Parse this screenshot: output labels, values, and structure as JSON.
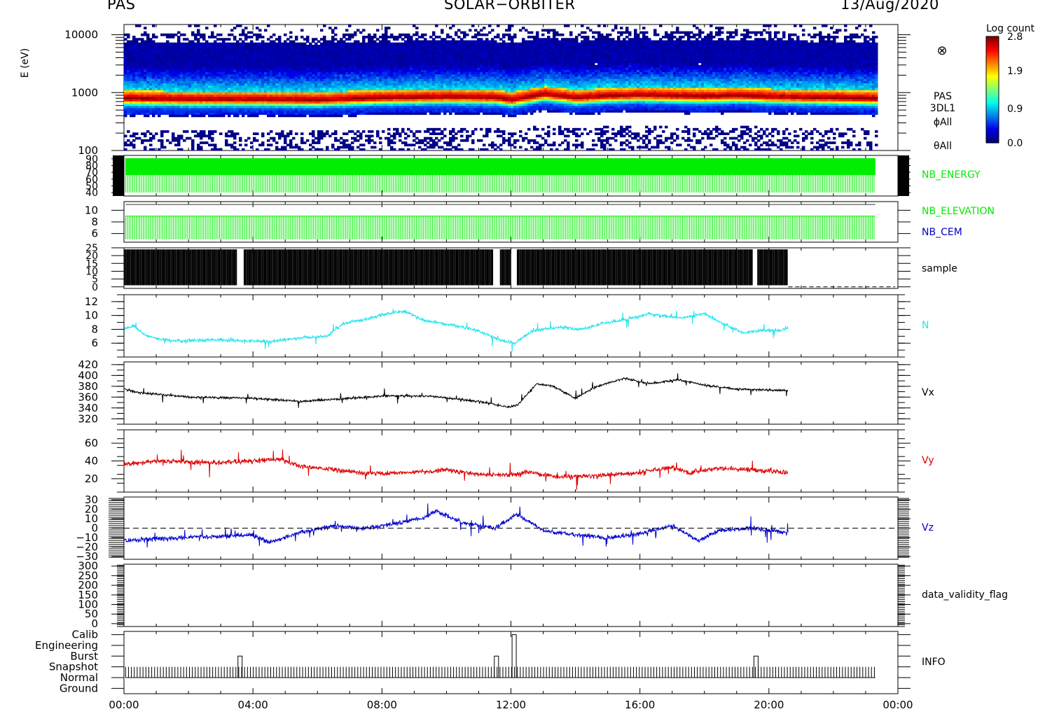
{
  "header": {
    "left": "PAS",
    "center": "SOLAR−ORBITER",
    "right": "13/Aug/2020"
  },
  "colors": {
    "nb_energy": "#00ee00",
    "nb_elevation": "#00ee00",
    "nb_cem": "#0000cc",
    "sample": "#000000",
    "N": "#22e4ee",
    "Vx": "#000000",
    "Vy": "#dd0000",
    "Vz": "#0000cc",
    "data_validity_flag": "#000000",
    "info": "#000000"
  },
  "chart_data": [
    {
      "type": "heatmap",
      "panel": "spectrogram",
      "ylabel": "E (eV)",
      "yscale": "log",
      "ylim": [
        100,
        15000
      ],
      "yticks": [
        "10000",
        "1000",
        "100"
      ],
      "ytick_values": [
        10000,
        1000,
        100
      ],
      "right_labels": [
        "PAS",
        "3DL1",
        "ϕAll",
        "θAll"
      ],
      "marker_symbol": "⊗",
      "colorbar": {
        "title": "Log count",
        "ticks": [
          "2.8",
          "1.9",
          "0.9",
          "0.0"
        ],
        "range": [
          0,
          2.8
        ]
      },
      "peak_energy_eV": {
        "x": [
          0,
          2,
          4,
          6,
          8,
          10,
          11.5,
          12,
          12.5,
          13,
          14,
          15,
          16,
          17,
          18,
          19,
          20,
          21,
          22,
          23.3
        ],
        "values": [
          830,
          800,
          800,
          780,
          850,
          880,
          860,
          780,
          880,
          980,
          850,
          920,
          950,
          920,
          900,
          930,
          890,
          860,
          850,
          820
        ]
      }
    },
    {
      "type": "line",
      "panel": "nb_energy",
      "right_labels": [
        "NB_ENERGY"
      ],
      "yticks": [
        "90",
        "80",
        "70",
        "60",
        "50",
        "40"
      ],
      "ytick_values": [
        90,
        80,
        70,
        60,
        50,
        40
      ],
      "ylim": [
        35,
        95
      ],
      "series": [
        {
          "name": "NB_ENERGY",
          "values_high": 96,
          "values_low": 40,
          "end_hour": 23.3
        }
      ]
    },
    {
      "type": "line",
      "panel": "nb_elevation_cem",
      "right_labels": [
        "NB_ELEVATION",
        "NB_CEM"
      ],
      "yticks": [
        "10",
        "8",
        "6"
      ],
      "ytick_values": [
        10,
        8,
        6
      ],
      "ylim": [
        4.5,
        11.5
      ],
      "series": [
        {
          "name": "NB_ELEVATION",
          "values_high": 9,
          "values_low": 5
        },
        {
          "name": "NB_CEM",
          "constant": 11
        }
      ]
    },
    {
      "type": "line",
      "panel": "sample",
      "right_labels": [
        "sample"
      ],
      "yticks": [
        "25",
        "20",
        "15",
        "10",
        "5",
        "0"
      ],
      "ytick_values": [
        25,
        20,
        15,
        10,
        5,
        0
      ],
      "ylim": [
        -1,
        25
      ],
      "series": [
        {
          "name": "sample",
          "values_high": 24,
          "values_low": 1,
          "end_hour": 20.6
        }
      ]
    },
    {
      "type": "line",
      "panel": "N",
      "right_labels": [
        "N"
      ],
      "yticks": [
        "12",
        "10",
        "8",
        "6"
      ],
      "ytick_values": [
        12,
        10,
        8,
        6
      ],
      "ylim": [
        4,
        13
      ],
      "series": [
        {
          "name": "N",
          "x": [
            0,
            0.3,
            0.7,
            1.5,
            3,
            4.5,
            5.5,
            6.3,
            6.8,
            7.5,
            8.2,
            8.7,
            9.3,
            10.2,
            11,
            11.6,
            12.1,
            12.7,
            13.5,
            14.2,
            14.8,
            15.5,
            16.3,
            17.3,
            18,
            18.5,
            19.2,
            19.7,
            20.5,
            20.6
          ],
          "values": [
            8.0,
            8.5,
            7.0,
            6.3,
            6.5,
            6.2,
            6.8,
            7.0,
            8.8,
            9.5,
            10.3,
            10.6,
            9.3,
            8.6,
            7.8,
            6.5,
            6.0,
            7.8,
            8.3,
            8.0,
            8.8,
            9.4,
            10.2,
            9.6,
            10.3,
            9.0,
            7.5,
            7.8,
            7.9,
            8.2
          ]
        }
      ]
    },
    {
      "type": "line",
      "panel": "Vx",
      "right_labels": [
        "Vx"
      ],
      "yticks": [
        "420",
        "400",
        "380",
        "360",
        "340",
        "320"
      ],
      "ytick_values": [
        420,
        400,
        380,
        360,
        340,
        320
      ],
      "ylim": [
        310,
        425
      ],
      "series": [
        {
          "name": "Vx",
          "x": [
            0,
            0.5,
            2,
            4,
            5.5,
            6.5,
            8,
            9.5,
            11,
            11.9,
            12.2,
            12.8,
            13.3,
            14,
            14.6,
            15.5,
            16.3,
            17.2,
            18,
            19,
            20,
            20.6
          ],
          "values": [
            375,
            368,
            360,
            358,
            352,
            356,
            362,
            362,
            352,
            342,
            345,
            385,
            380,
            358,
            378,
            395,
            385,
            392,
            382,
            375,
            373,
            372
          ]
        }
      ]
    },
    {
      "type": "line",
      "panel": "Vy",
      "right_labels": [
        "Vy"
      ],
      "yticks": [
        "60",
        "40",
        "20"
      ],
      "ytick_values": [
        60,
        40,
        20
      ],
      "ylim": [
        5,
        75
      ],
      "series": [
        {
          "name": "Vy",
          "x": [
            0,
            1,
            3,
            4.8,
            5.5,
            6.5,
            7.5,
            9,
            10,
            11,
            12,
            12.5,
            13.5,
            14.5,
            16,
            17,
            17.5,
            18.5,
            19.5,
            20.6
          ],
          "values": [
            36,
            40,
            38,
            42,
            34,
            30,
            26,
            27,
            30,
            25,
            24,
            28,
            22,
            23,
            27,
            33,
            27,
            32,
            30,
            27
          ]
        }
      ]
    },
    {
      "type": "line",
      "panel": "Vz",
      "right_labels": [
        "Vz"
      ],
      "yticks": [
        "30",
        "20",
        "10",
        "0",
        "−10",
        "−20",
        "−30"
      ],
      "ytick_values": [
        30,
        20,
        10,
        0,
        -10,
        -20,
        -30
      ],
      "ylim": [
        -33,
        33
      ],
      "zero_line": true,
      "series": [
        {
          "name": "Vz",
          "x": [
            0,
            2,
            4,
            4.5,
            5.5,
            6.5,
            7.5,
            8.5,
            9.2,
            9.7,
            10.5,
            11.5,
            12.2,
            13,
            14,
            15,
            16,
            17,
            17.8,
            18.5,
            19.5,
            20.6
          ],
          "values": [
            -13,
            -10,
            -7,
            -15,
            -4,
            2,
            0,
            5,
            10,
            18,
            6,
            0,
            15,
            -3,
            -7,
            -10,
            -6,
            3,
            -13,
            -2,
            0,
            -5
          ]
        }
      ]
    },
    {
      "type": "line",
      "panel": "data_validity_flag",
      "right_labels": [
        "data_validity_flag"
      ],
      "yticks": [
        "300",
        "250",
        "200",
        "150",
        "100",
        "50",
        "0"
      ],
      "ytick_values": [
        300,
        250,
        200,
        150,
        100,
        50,
        0
      ],
      "ylim": [
        -15,
        310
      ],
      "series": []
    },
    {
      "type": "line",
      "panel": "info",
      "right_labels": [
        "INFO"
      ],
      "yticks": [
        "Calib",
        "Engineering",
        "Burst",
        "Snapshot",
        "Normal",
        "Ground"
      ],
      "ytick_values": [
        5,
        4,
        3,
        2,
        1,
        0
      ],
      "ylim": [
        -0.5,
        5.3
      ],
      "series": [
        {
          "name": "INFO",
          "base": 1,
          "pulse_top": 2,
          "end_hour": 23.3,
          "events": [
            {
              "x": 3.6,
              "value": 3
            },
            {
              "x": 11.55,
              "value": 3
            },
            {
              "x": 12.1,
              "value": 5
            },
            {
              "x": 19.6,
              "value": 3
            }
          ]
        }
      ]
    }
  ],
  "x_axis": {
    "ticks": [
      "00:00",
      "04:00",
      "08:00",
      "12:00",
      "16:00",
      "20:00",
      "00:00"
    ],
    "tick_hours": [
      0,
      4,
      8,
      12,
      16,
      20,
      24
    ],
    "range": [
      0,
      24
    ]
  }
}
